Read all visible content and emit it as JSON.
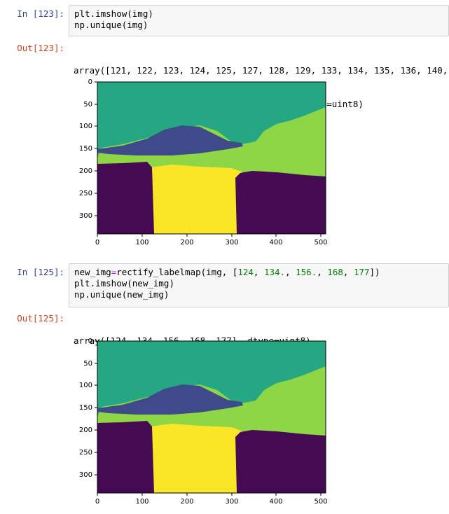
{
  "cells": [
    {
      "in_prompt": "In [123]:",
      "code_lines": [
        "plt.imshow(img)",
        "np.unique(img)"
      ],
      "out_prompt": "Out[123]:",
      "output_lines": [
        "array([121, 122, 123, 124, 125, 127, 128, 129, 133, 134, 135, 136, 140,",
        "       145, 147, 150, 156, 163, 168, 177], dtype=uint8)"
      ],
      "plot": {
        "x_ticks": [
          "0",
          "100",
          "200",
          "300",
          "400",
          "500"
        ],
        "y_ticks": [
          "0",
          "50",
          "100",
          "150",
          "200",
          "250",
          "300"
        ]
      }
    },
    {
      "in_prompt": "In [125]:",
      "code": {
        "call": "new_img",
        "op": "=",
        "func": "rectify_labelmap(img, [",
        "args": [
          "124",
          "134.",
          "156.",
          "168",
          "177"
        ],
        "close": "])",
        "line2": "plt.imshow(new_img)",
        "line3": "np.unique(new_img)"
      },
      "out_prompt": "Out[125]:",
      "output_lines": [
        "array([124, 134, 156, 168, 177], dtype=uint8)"
      ],
      "plot": {
        "x_ticks": [
          "0",
          "100",
          "200",
          "300",
          "400",
          "500"
        ],
        "y_ticks": [
          "0",
          "50",
          "100",
          "150",
          "200",
          "250",
          "300"
        ]
      }
    }
  ],
  "colors": {
    "teal": "#25a784",
    "indigo": "#3e4a8a",
    "green": "#8ed645",
    "purple": "#450a52",
    "yellow": "#fbe527",
    "in_prompt": "#303f9f",
    "out_prompt": "#d84315"
  }
}
